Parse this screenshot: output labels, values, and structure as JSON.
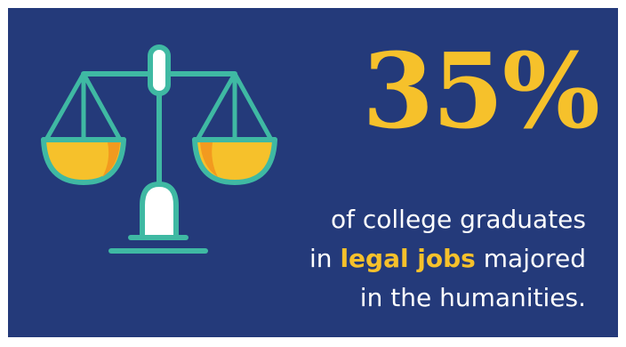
{
  "icon": "scales-of-justice-icon",
  "colors": {
    "background": "#243a7a",
    "accent": "#f6c12b",
    "scale_line": "#3fb9a3",
    "text": "#ffffff"
  },
  "stat": {
    "value": "35%"
  },
  "caption": {
    "line1": "of college graduates",
    "line2_prefix": "in ",
    "line2_highlight": "legal jobs",
    "line2_suffix": " majored",
    "line3": "in the humanities."
  }
}
